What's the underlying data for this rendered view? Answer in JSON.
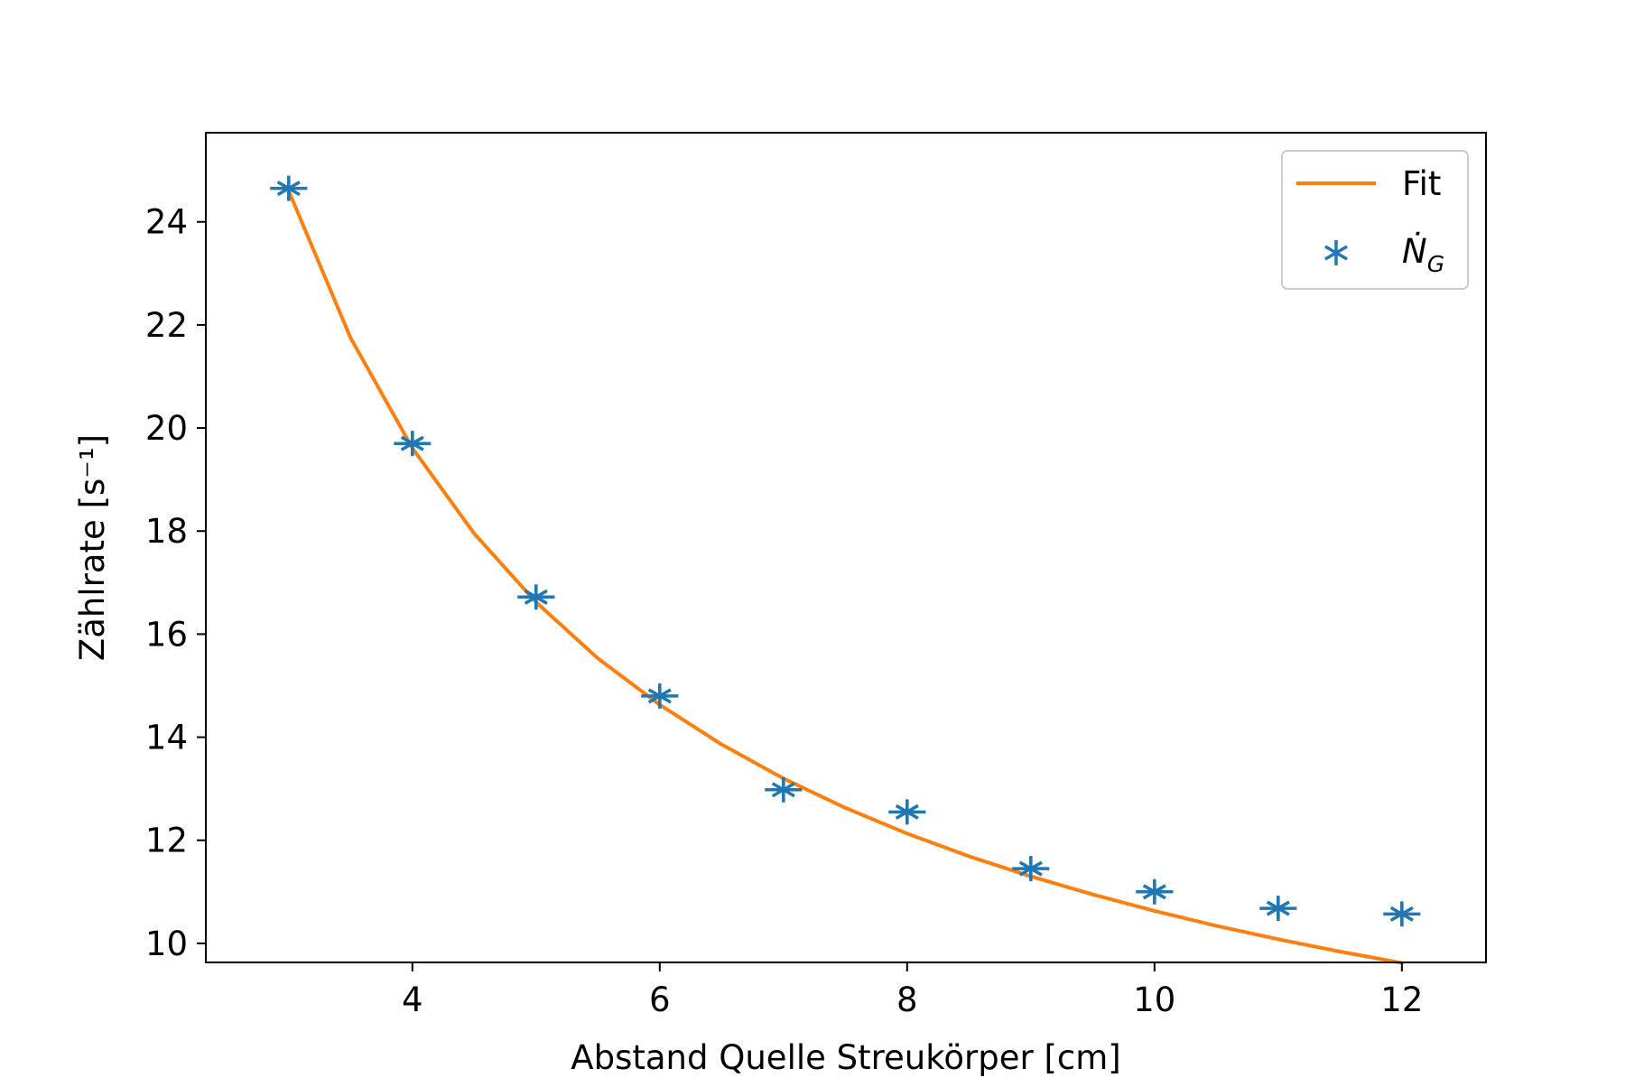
{
  "chart_data": {
    "type": "scatter",
    "title": "",
    "xlabel": "Abstand Quelle Streukörper [cm]",
    "ylabel": "Zählrate [s⁻¹]",
    "xlim": [
      2.33,
      12.68
    ],
    "ylim": [
      9.63,
      25.73
    ],
    "xticks": [
      4,
      6,
      8,
      10,
      12
    ],
    "yticks": [
      10,
      12,
      14,
      16,
      18,
      20,
      22,
      24
    ],
    "grid": false,
    "legend_position": "top-right",
    "series": [
      {
        "name": "Fit",
        "kind": "line",
        "color": "#ff7f0e",
        "model": "1/x",
        "x": [
          3,
          3.5,
          4,
          4.5,
          5,
          5.5,
          6,
          6.5,
          7,
          7.5,
          8,
          8.5,
          9,
          9.5,
          10,
          10.5,
          11,
          11.5,
          12
        ],
        "values": [
          24.6,
          21.75,
          19.61,
          17.95,
          16.62,
          15.53,
          14.63,
          13.86,
          13.2,
          12.63,
          12.13,
          11.69,
          11.3,
          10.95,
          10.63,
          10.34,
          10.08,
          9.84,
          9.62
        ]
      },
      {
        "name": "Ṅ_G",
        "name_main": "Ṅ",
        "name_sub": "G",
        "kind": "points",
        "marker": "asterisk",
        "color": "#1f77b4",
        "x": [
          3,
          4,
          5,
          6,
          7,
          8,
          9,
          10,
          11,
          12
        ],
        "values": [
          24.65,
          19.7,
          16.72,
          14.8,
          12.98,
          12.55,
          11.45,
          11.0,
          10.68,
          10.57
        ],
        "xerr": 0.15,
        "yerr": 0.22
      }
    ]
  }
}
